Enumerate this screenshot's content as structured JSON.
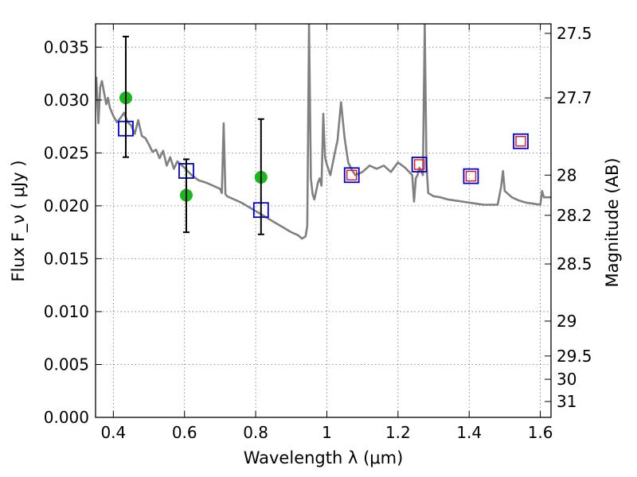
{
  "chart_data": {
    "type": "scatter",
    "xlabel": "Wavelength  λ (μm)",
    "ylabel": "Flux  F_ν  ( μJy )",
    "ylabel_right": "Magnitude (AB)",
    "xlim": [
      0.35,
      1.63
    ],
    "ylim": [
      0.0,
      0.0372
    ],
    "x_ticks": [
      0.4,
      0.6,
      0.8,
      1.0,
      1.2,
      1.4,
      1.6
    ],
    "x_tick_labels": [
      "0.4",
      "0.6",
      "0.8",
      "1",
      "1.2",
      "1.4",
      "1.6"
    ],
    "y_ticks": [
      0.0,
      0.005,
      0.01,
      0.015,
      0.02,
      0.025,
      0.03,
      0.035
    ],
    "y_tick_labels": [
      "0.000",
      "0.005",
      "0.010",
      "0.015",
      "0.020",
      "0.025",
      "0.030",
      "0.035"
    ],
    "right_ticks": [
      {
        "label": "27.5",
        "flux": 0.0363
      },
      {
        "label": "27.7",
        "flux": 0.0302
      },
      {
        "label": "28",
        "flux": 0.0229
      },
      {
        "label": "28.2",
        "flux": 0.0191
      },
      {
        "label": "28.5",
        "flux": 0.0145
      },
      {
        "label": "29",
        "flux": 0.0091
      },
      {
        "label": "29.5",
        "flux": 0.0058
      },
      {
        "label": "30",
        "flux": 0.0036
      },
      {
        "label": "31",
        "flux": 0.0015
      }
    ],
    "grid": true,
    "series": [
      {
        "kind": "line",
        "color": "#808080",
        "x": [
          0.352,
          0.358,
          0.363,
          0.368,
          0.375,
          0.38,
          0.385,
          0.39,
          0.4,
          0.41,
          0.42,
          0.43,
          0.44,
          0.45,
          0.46,
          0.47,
          0.48,
          0.49,
          0.5,
          0.51,
          0.52,
          0.53,
          0.54,
          0.55,
          0.56,
          0.57,
          0.58,
          0.6,
          0.62,
          0.64,
          0.66,
          0.68,
          0.7,
          0.705,
          0.71,
          0.715,
          0.72,
          0.74,
          0.76,
          0.78,
          0.8,
          0.82,
          0.84,
          0.86,
          0.88,
          0.9,
          0.92,
          0.93,
          0.94,
          0.945,
          0.95,
          0.955,
          0.96,
          0.965,
          0.97,
          0.975,
          0.98,
          0.985,
          0.99,
          0.995,
          1.0,
          1.01,
          1.02,
          1.03,
          1.04,
          1.05,
          1.06,
          1.07,
          1.08,
          1.1,
          1.12,
          1.14,
          1.16,
          1.18,
          1.2,
          1.22,
          1.24,
          1.245,
          1.25,
          1.255,
          1.26,
          1.265,
          1.27,
          1.275,
          1.28,
          1.285,
          1.29,
          1.3,
          1.32,
          1.34,
          1.36,
          1.38,
          1.4,
          1.42,
          1.44,
          1.46,
          1.48,
          1.49,
          1.495,
          1.5,
          1.52,
          1.54,
          1.56,
          1.58,
          1.6,
          1.605,
          1.61,
          1.63
        ],
        "y": [
          0.0322,
          0.0278,
          0.0312,
          0.0318,
          0.0305,
          0.0296,
          0.0302,
          0.0293,
          0.0285,
          0.0279,
          0.0283,
          0.0288,
          0.0279,
          0.0276,
          0.0268,
          0.0281,
          0.0266,
          0.0264,
          0.0258,
          0.0251,
          0.0253,
          0.0245,
          0.0252,
          0.0238,
          0.0246,
          0.0235,
          0.0242,
          0.0236,
          0.0229,
          0.0224,
          0.0222,
          0.0219,
          0.0216,
          0.0212,
          0.0278,
          0.0211,
          0.0209,
          0.0206,
          0.0203,
          0.0199,
          0.0195,
          0.0191,
          0.0187,
          0.0183,
          0.0179,
          0.0175,
          0.0172,
          0.0169,
          0.0171,
          0.0181,
          0.0372,
          0.0226,
          0.0211,
          0.0206,
          0.0214,
          0.0222,
          0.0226,
          0.0219,
          0.0287,
          0.0246,
          0.0239,
          0.0229,
          0.0246,
          0.0262,
          0.0298,
          0.0264,
          0.0241,
          0.0234,
          0.0229,
          0.0232,
          0.0238,
          0.0235,
          0.0238,
          0.0232,
          0.0241,
          0.0236,
          0.0229,
          0.0204,
          0.0226,
          0.0229,
          0.0236,
          0.0233,
          0.0229,
          0.0372,
          0.0239,
          0.0212,
          0.0211,
          0.0209,
          0.0208,
          0.0206,
          0.0205,
          0.0204,
          0.0203,
          0.0202,
          0.0201,
          0.0201,
          0.0201,
          0.0218,
          0.0233,
          0.0214,
          0.0208,
          0.0205,
          0.0203,
          0.0202,
          0.0201,
          0.0214,
          0.0208,
          0.0208
        ]
      },
      {
        "kind": "points",
        "marker": "circle",
        "color": "#1ab81a",
        "x": [
          0.435,
          0.605,
          0.815
        ],
        "y": [
          0.0302,
          0.021,
          0.0227
        ]
      },
      {
        "kind": "points",
        "marker": "square",
        "color": "#0000cc",
        "x": [
          0.435,
          0.605,
          0.815,
          1.07,
          1.26,
          1.405,
          1.545
        ],
        "y": [
          0.0273,
          0.0233,
          0.0196,
          0.0229,
          0.0239,
          0.0228,
          0.0261
        ]
      },
      {
        "kind": "points",
        "marker": "square-small",
        "color": "#e8101a",
        "x": [
          1.07,
          1.26,
          1.405,
          1.545
        ],
        "y": [
          0.0229,
          0.0239,
          0.0228,
          0.0261
        ]
      },
      {
        "kind": "errorbars",
        "color": "#000000",
        "x": [
          0.435,
          0.605,
          0.815
        ],
        "low": [
          0.0246,
          0.0175,
          0.0173
        ],
        "high": [
          0.036,
          0.0244,
          0.0282
        ]
      }
    ]
  }
}
